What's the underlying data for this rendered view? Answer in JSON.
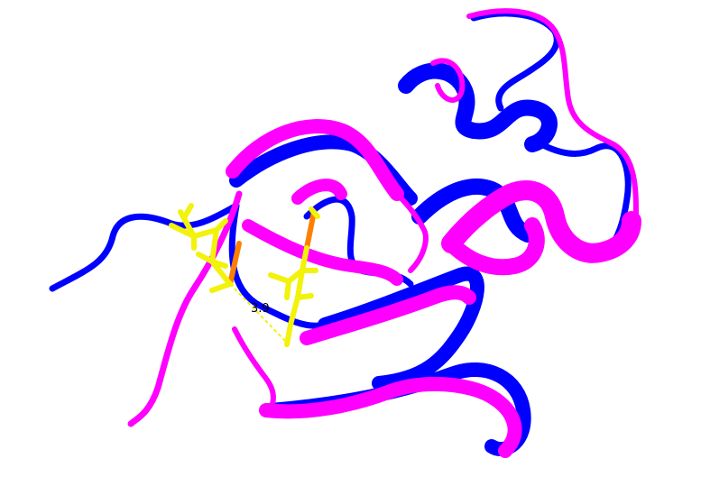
{
  "distance_label": "3.9",
  "colors": {
    "background": "#ffffff",
    "structure_a": "#ff00ff",
    "structure_b": "#0000ff",
    "residue_highlight": "#f2f20a",
    "residue_base": "#ff7f00",
    "distance_line": "#f2f20a"
  },
  "structures": [
    {
      "name_key": "structure_a",
      "representation": "cartoon"
    },
    {
      "name_key": "structure_b",
      "representation": "cartoon"
    }
  ]
}
